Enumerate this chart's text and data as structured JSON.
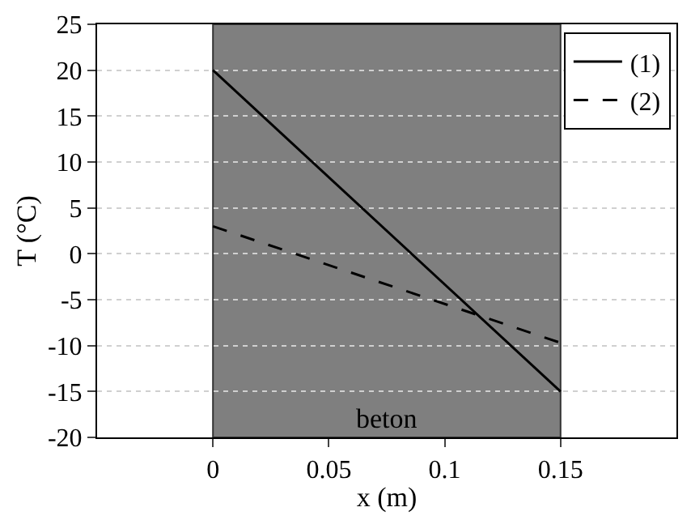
{
  "chart_data": {
    "type": "line",
    "xlabel": "x (m)",
    "ylabel": "T (°C)",
    "xlim": [
      -0.05,
      0.2
    ],
    "xticks": [
      0,
      0.05,
      0.1,
      0.15
    ],
    "ylim": [
      -20,
      25
    ],
    "yticks": [
      -20,
      -15,
      -10,
      -5,
      0,
      5,
      10,
      15,
      20,
      25
    ],
    "grid": "y",
    "legend": "top right",
    "x": [
      0,
      0.15
    ],
    "series": [
      {
        "name": "(1)",
        "color": "#000000",
        "values": [
          20,
          -15
        ],
        "line_style": "solid"
      },
      {
        "name": "(2)",
        "color": "#000000",
        "values": [
          3,
          -9.7
        ],
        "line_style": "dashed"
      }
    ],
    "bands": [
      {
        "axis": "x",
        "from": 0,
        "to": 0.15,
        "label": "beton",
        "color": "#7f7f7f"
      }
    ]
  }
}
